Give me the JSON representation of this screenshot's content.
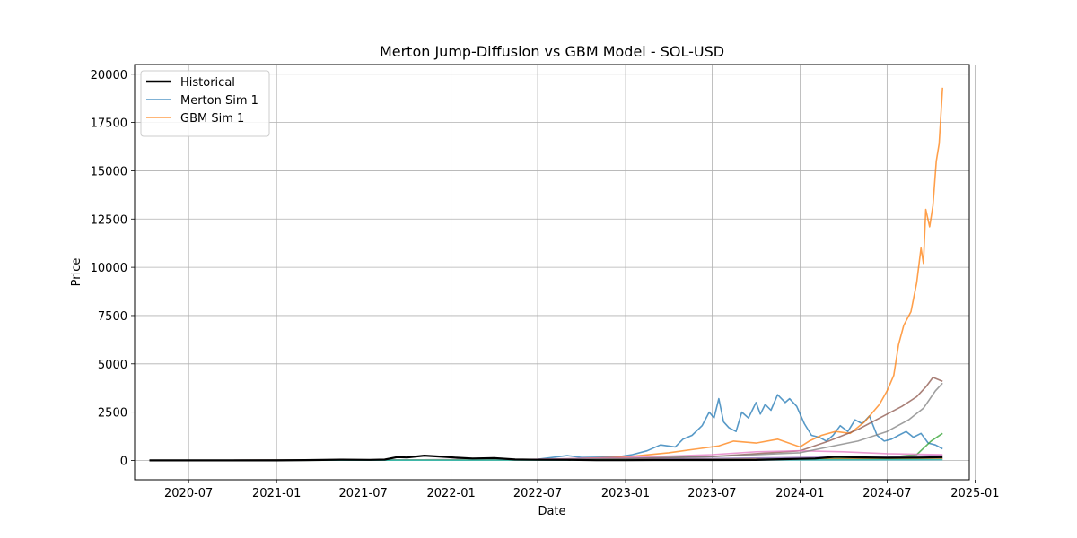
{
  "chart_data": {
    "type": "line",
    "title": "Merton Jump-Diffusion vs GBM Model - SOL-USD",
    "xlabel": "Date",
    "ylabel": "Price",
    "xlim": [
      "2020-03-10",
      "2024-12-20"
    ],
    "ylim": [
      -1000,
      20500
    ],
    "grid": true,
    "legend_position": "top-left",
    "x_ticks": [
      "2020-07",
      "2021-01",
      "2021-07",
      "2022-01",
      "2022-07",
      "2023-01",
      "2023-07",
      "2024-01",
      "2024-07",
      "2025-01"
    ],
    "y_ticks": [
      0,
      2500,
      5000,
      7500,
      10000,
      12500,
      15000,
      17500,
      20000
    ],
    "legend": [
      {
        "name": "Historical",
        "color": "#000000"
      },
      {
        "name": "Merton Sim 1",
        "color": "#1f77b4"
      },
      {
        "name": "GBM Sim 1",
        "color": "#ff7f0e"
      }
    ],
    "series": [
      {
        "name": "Historical",
        "color": "#000000",
        "opacity": 1.0,
        "width": 2.2,
        "x": [
          "2020-04-10",
          "2020-07-01",
          "2020-10-01",
          "2021-01-01",
          "2021-03-01",
          "2021-05-15",
          "2021-07-15",
          "2021-08-15",
          "2021-09-10",
          "2021-10-01",
          "2021-11-06",
          "2021-12-15",
          "2022-01-15",
          "2022-02-15",
          "2022-04-01",
          "2022-05-15",
          "2022-07-01",
          "2022-09-01",
          "2022-11-01",
          "2023-01-01",
          "2023-03-01",
          "2023-07-01",
          "2023-10-01",
          "2023-12-01",
          "2024-02-01",
          "2024-03-15",
          "2024-05-01",
          "2024-07-01",
          "2024-09-01",
          "2024-10-25"
        ],
        "y": [
          1,
          2,
          3,
          2,
          15,
          40,
          30,
          45,
          170,
          150,
          250,
          190,
          140,
          100,
          120,
          50,
          35,
          32,
          14,
          10,
          22,
          20,
          25,
          70,
          100,
          190,
          160,
          140,
          145,
          170
        ]
      },
      {
        "name": "Merton Sim 1",
        "color": "#1f77b4",
        "opacity": 0.75,
        "width": 1.6,
        "x": [
          "2020-04-10",
          "2021-01-01",
          "2022-01-01",
          "2022-07-01",
          "2022-09-01",
          "2022-10-01",
          "2022-12-15",
          "2023-01-15",
          "2023-02-15",
          "2023-03-15",
          "2023-04-15",
          "2023-05-01",
          "2023-05-20",
          "2023-06-10",
          "2023-06-25",
          "2023-07-05",
          "2023-07-15",
          "2023-07-25",
          "2023-08-05",
          "2023-08-20",
          "2023-09-01",
          "2023-09-15",
          "2023-10-01",
          "2023-10-10",
          "2023-10-20",
          "2023-11-01",
          "2023-11-15",
          "2023-12-01",
          "2023-12-10",
          "2023-12-25",
          "2024-01-10",
          "2024-01-25",
          "2024-02-10",
          "2024-02-25",
          "2024-03-10",
          "2024-03-25",
          "2024-04-10",
          "2024-04-25",
          "2024-05-10",
          "2024-05-25",
          "2024-06-10",
          "2024-06-25",
          "2024-07-10",
          "2024-07-25",
          "2024-08-10",
          "2024-08-25",
          "2024-09-10",
          "2024-09-25",
          "2024-10-10",
          "2024-10-25"
        ],
        "y": [
          5,
          10,
          20,
          60,
          250,
          150,
          180,
          300,
          500,
          800,
          700,
          1100,
          1300,
          1800,
          2500,
          2200,
          3200,
          2000,
          1700,
          1500,
          2500,
          2200,
          3000,
          2400,
          2900,
          2600,
          3400,
          3000,
          3200,
          2800,
          1900,
          1300,
          1200,
          1000,
          1300,
          1800,
          1500,
          2100,
          1900,
          2300,
          1300,
          1000,
          1100,
          1300,
          1500,
          1200,
          1400,
          900,
          800,
          600
        ]
      },
      {
        "name": "GBM Sim 1",
        "color": "#ff7f0e",
        "opacity": 0.75,
        "width": 1.6,
        "x": [
          "2020-04-10",
          "2021-01-01",
          "2022-01-01",
          "2022-08-01",
          "2022-10-01",
          "2023-01-01",
          "2023-04-01",
          "2023-06-01",
          "2023-07-15",
          "2023-08-15",
          "2023-10-01",
          "2023-11-15",
          "2024-01-01",
          "2024-01-20",
          "2024-02-15",
          "2024-03-15",
          "2024-04-15",
          "2024-05-15",
          "2024-06-15",
          "2024-07-01",
          "2024-07-15",
          "2024-07-25",
          "2024-08-05",
          "2024-08-20",
          "2024-09-01",
          "2024-09-10",
          "2024-09-15",
          "2024-09-20",
          "2024-09-28",
          "2024-10-05",
          "2024-10-12",
          "2024-10-18",
          "2024-10-25"
        ],
        "y": [
          5,
          10,
          20,
          60,
          100,
          180,
          400,
          600,
          750,
          1000,
          900,
          1100,
          700,
          1000,
          1300,
          1500,
          1400,
          2000,
          2900,
          3600,
          4400,
          6000,
          7000,
          7700,
          9200,
          11000,
          10200,
          13000,
          12100,
          13200,
          15500,
          16400,
          19300
        ]
      },
      {
        "name": "",
        "color": "#2ca02c",
        "opacity": 0.75,
        "width": 1.6,
        "x": [
          "2020-04-10",
          "2021-06-01",
          "2022-06-01",
          "2023-01-01",
          "2023-07-01",
          "2024-01-01",
          "2024-07-01",
          "2024-09-01",
          "2024-10-01",
          "2024-10-25"
        ],
        "y": [
          5,
          20,
          40,
          60,
          80,
          100,
          150,
          300,
          1000,
          1400
        ]
      },
      {
        "name": "",
        "color": "#d62728",
        "opacity": 0.75,
        "width": 1.6,
        "x": [
          "2020-04-10",
          "2021-06-01",
          "2022-06-01",
          "2023-01-01",
          "2023-07-01",
          "2024-01-01",
          "2024-07-01",
          "2024-10-25"
        ],
        "y": [
          5,
          15,
          30,
          40,
          50,
          60,
          80,
          100
        ]
      },
      {
        "name": "",
        "color": "#9467bd",
        "opacity": 0.75,
        "width": 1.6,
        "x": [
          "2020-04-10",
          "2021-06-01",
          "2022-06-01",
          "2023-01-01",
          "2023-07-01",
          "2024-01-01",
          "2024-07-01",
          "2024-10-25"
        ],
        "y": [
          5,
          20,
          50,
          80,
          100,
          150,
          200,
          250
        ]
      },
      {
        "name": "",
        "color": "#8c564b",
        "opacity": 0.75,
        "width": 1.6,
        "x": [
          "2020-04-10",
          "2021-06-01",
          "2022-06-01",
          "2023-01-01",
          "2023-07-01",
          "2024-01-01",
          "2024-03-01",
          "2024-05-01",
          "2024-07-01",
          "2024-08-01",
          "2024-09-01",
          "2024-09-20",
          "2024-10-05",
          "2024-10-25"
        ],
        "y": [
          5,
          20,
          50,
          100,
          200,
          500,
          1000,
          1600,
          2400,
          2800,
          3300,
          3800,
          4300,
          4100
        ]
      },
      {
        "name": "",
        "color": "#e377c2",
        "opacity": 0.75,
        "width": 1.6,
        "x": [
          "2020-04-10",
          "2021-06-01",
          "2022-06-01",
          "2023-01-01",
          "2023-07-01",
          "2023-10-01",
          "2024-01-01",
          "2024-04-01",
          "2024-07-01",
          "2024-10-25"
        ],
        "y": [
          5,
          20,
          50,
          150,
          300,
          450,
          500,
          450,
          350,
          300
        ]
      },
      {
        "name": "",
        "color": "#7f7f7f",
        "opacity": 0.75,
        "width": 1.6,
        "x": [
          "2020-04-10",
          "2021-06-01",
          "2022-06-01",
          "2023-01-01",
          "2023-07-01",
          "2024-01-01",
          "2024-03-01",
          "2024-05-01",
          "2024-07-01",
          "2024-08-15",
          "2024-09-15",
          "2024-10-10",
          "2024-10-25"
        ],
        "y": [
          5,
          20,
          50,
          100,
          200,
          400,
          700,
          1000,
          1500,
          2100,
          2700,
          3600,
          4000
        ]
      },
      {
        "name": "",
        "color": "#bcbd22",
        "opacity": 0.75,
        "width": 1.6,
        "x": [
          "2020-04-10",
          "2021-06-01",
          "2022-06-01",
          "2023-01-01",
          "2023-07-01",
          "2024-01-01",
          "2024-07-01",
          "2024-10-25"
        ],
        "y": [
          5,
          10,
          20,
          30,
          40,
          50,
          60,
          70
        ]
      },
      {
        "name": "",
        "color": "#17becf",
        "opacity": 0.75,
        "width": 1.6,
        "x": [
          "2020-04-10",
          "2021-06-01",
          "2022-06-01",
          "2023-01-01",
          "2023-07-01",
          "2024-01-01",
          "2024-07-01",
          "2024-10-25"
        ],
        "y": [
          5,
          10,
          15,
          20,
          25,
          30,
          35,
          40
        ]
      }
    ]
  }
}
